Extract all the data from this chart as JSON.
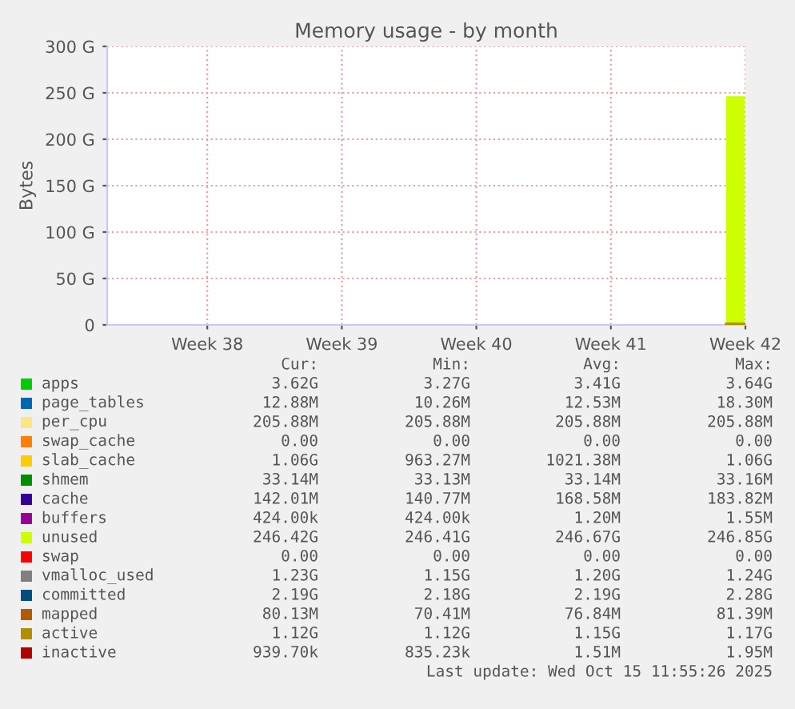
{
  "chart_data": {
    "type": "area",
    "title": "Memory usage - by month",
    "ylabel": "Bytes",
    "legend": "bottom",
    "grid": true,
    "x": [
      "2025-10-14T12:00",
      "2025-10-15T11:00"
    ],
    "xlim": [
      "2025-09-12T07:00",
      "2025-10-15T12:00"
    ],
    "xticks": [
      {
        "value": "2025-09-17T12:00",
        "label": "Week 38"
      },
      {
        "value": "2025-09-24T12:00",
        "label": "Week 39"
      },
      {
        "value": "2025-10-01T12:00",
        "label": "Week 40"
      },
      {
        "value": "2025-10-08T12:00",
        "label": "Week 41"
      },
      {
        "value": "2025-10-15T12:00",
        "label": "Week 42"
      }
    ],
    "ylim": [
      0,
      300
    ],
    "yticks": [
      {
        "value": 0,
        "label": "0"
      },
      {
        "value": 50,
        "label": "50 G"
      },
      {
        "value": 100,
        "label": "100 G"
      },
      {
        "value": 150,
        "label": "150 G"
      },
      {
        "value": 200,
        "label": "200 G"
      },
      {
        "value": 250,
        "label": "250 G"
      },
      {
        "value": 300,
        "label": "300 G"
      }
    ],
    "series": [
      {
        "name": "apps",
        "color": "#00cc00",
        "values": [
          null,
          null
        ]
      },
      {
        "name": "page_tables",
        "color": "#0066b3",
        "values": [
          null,
          null
        ]
      },
      {
        "name": "per_cpu",
        "color": "#ffe680",
        "values": [
          null,
          null
        ]
      },
      {
        "name": "swap_cache",
        "color": "#ff8000",
        "values": [
          null,
          null
        ]
      },
      {
        "name": "slab_cache",
        "color": "#ffcc00",
        "values": [
          null,
          null
        ]
      },
      {
        "name": "shmem",
        "color": "#008f00",
        "values": [
          null,
          null
        ]
      },
      {
        "name": "cache",
        "color": "#330099",
        "values": [
          null,
          null
        ]
      },
      {
        "name": "buffers",
        "color": "#990099",
        "values": [
          null,
          null
        ]
      },
      {
        "name": "unused",
        "color": "#ccff00",
        "values": [
          246.4,
          246.4
        ]
      },
      {
        "name": "swap",
        "color": "#ff0000",
        "values": [
          null,
          null
        ]
      },
      {
        "name": "vmalloc_used",
        "color": "#808080",
        "type": "line",
        "values": [
          null,
          null
        ]
      },
      {
        "name": "committed",
        "color": "#004d80",
        "type": "line",
        "values": [
          null,
          null
        ]
      },
      {
        "name": "mapped",
        "color": "#b35a00",
        "type": "line",
        "values": [
          null,
          null
        ]
      },
      {
        "name": "active",
        "color": "#b38f00",
        "type": "line",
        "values": [
          1.1,
          1.1
        ]
      },
      {
        "name": "inactive",
        "color": "#b30000",
        "type": "line",
        "values": [
          null,
          null
        ]
      }
    ],
    "annotations": [
      "Cur:",
      "Min:",
      "Avg:",
      "Max:",
      "3.62G",
      "3.27G",
      "3.41G",
      "3.64G",
      "12.88M",
      "10.26M",
      "12.53M",
      "18.30M",
      "205.88M",
      "205.88M",
      "205.88M",
      "205.88M",
      "0.00",
      "0.00",
      "0.00",
      "0.00",
      "1.06G",
      "963.27M",
      "1021.38M",
      "1.06G",
      "33.14M",
      "33.13M",
      "33.14M",
      "33.16M",
      "142.01M",
      "140.77M",
      "168.58M",
      "183.82M",
      "424.00k",
      "424.00k",
      "1.20M",
      "1.55M",
      "246.42G",
      "246.41G",
      "246.67G",
      "246.85G",
      "0.00",
      "0.00",
      "0.00",
      "0.00",
      "1.23G",
      "1.15G",
      "1.20G",
      "1.24G",
      "2.19G",
      "2.18G",
      "2.19G",
      "2.28G",
      "80.13M",
      "70.41M",
      "76.84M",
      "81.39M",
      "1.12G",
      "1.12G",
      "1.15G",
      "1.17G",
      "939.70k",
      "835.23k",
      "1.51M",
      "1.95M",
      "Last update: Wed Oct 15 11:55:26 2025"
    ]
  }
}
